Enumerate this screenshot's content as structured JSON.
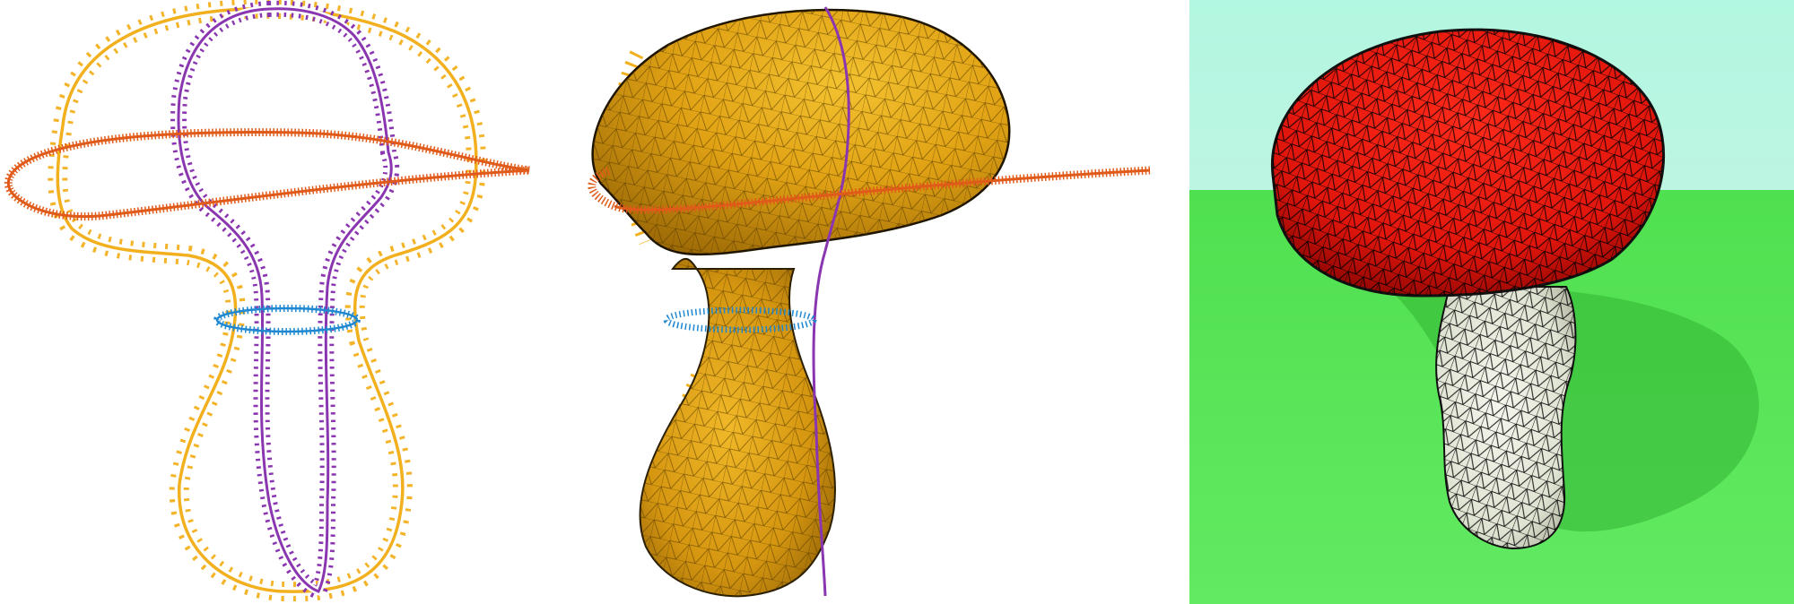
{
  "figure": {
    "panels": [
      {
        "id": "curves",
        "subject": "input-curves"
      },
      {
        "id": "surface",
        "subject": "fitted-surface"
      },
      {
        "id": "render",
        "subject": "rendered-mushroom"
      }
    ]
  },
  "colors": {
    "profile_curve": "#f2b01e",
    "middle_curve": "#8a36b0",
    "cap_curve": "#e05a1a",
    "ring_curve": "#1f88d0",
    "surface": "#d99a10",
    "cap_render": "#e4140c",
    "stem_render": "#e9ece0",
    "sky": "#b5f6e0",
    "ground": "#5fe55f"
  },
  "icons": [
    "normal-tick-icon"
  ]
}
